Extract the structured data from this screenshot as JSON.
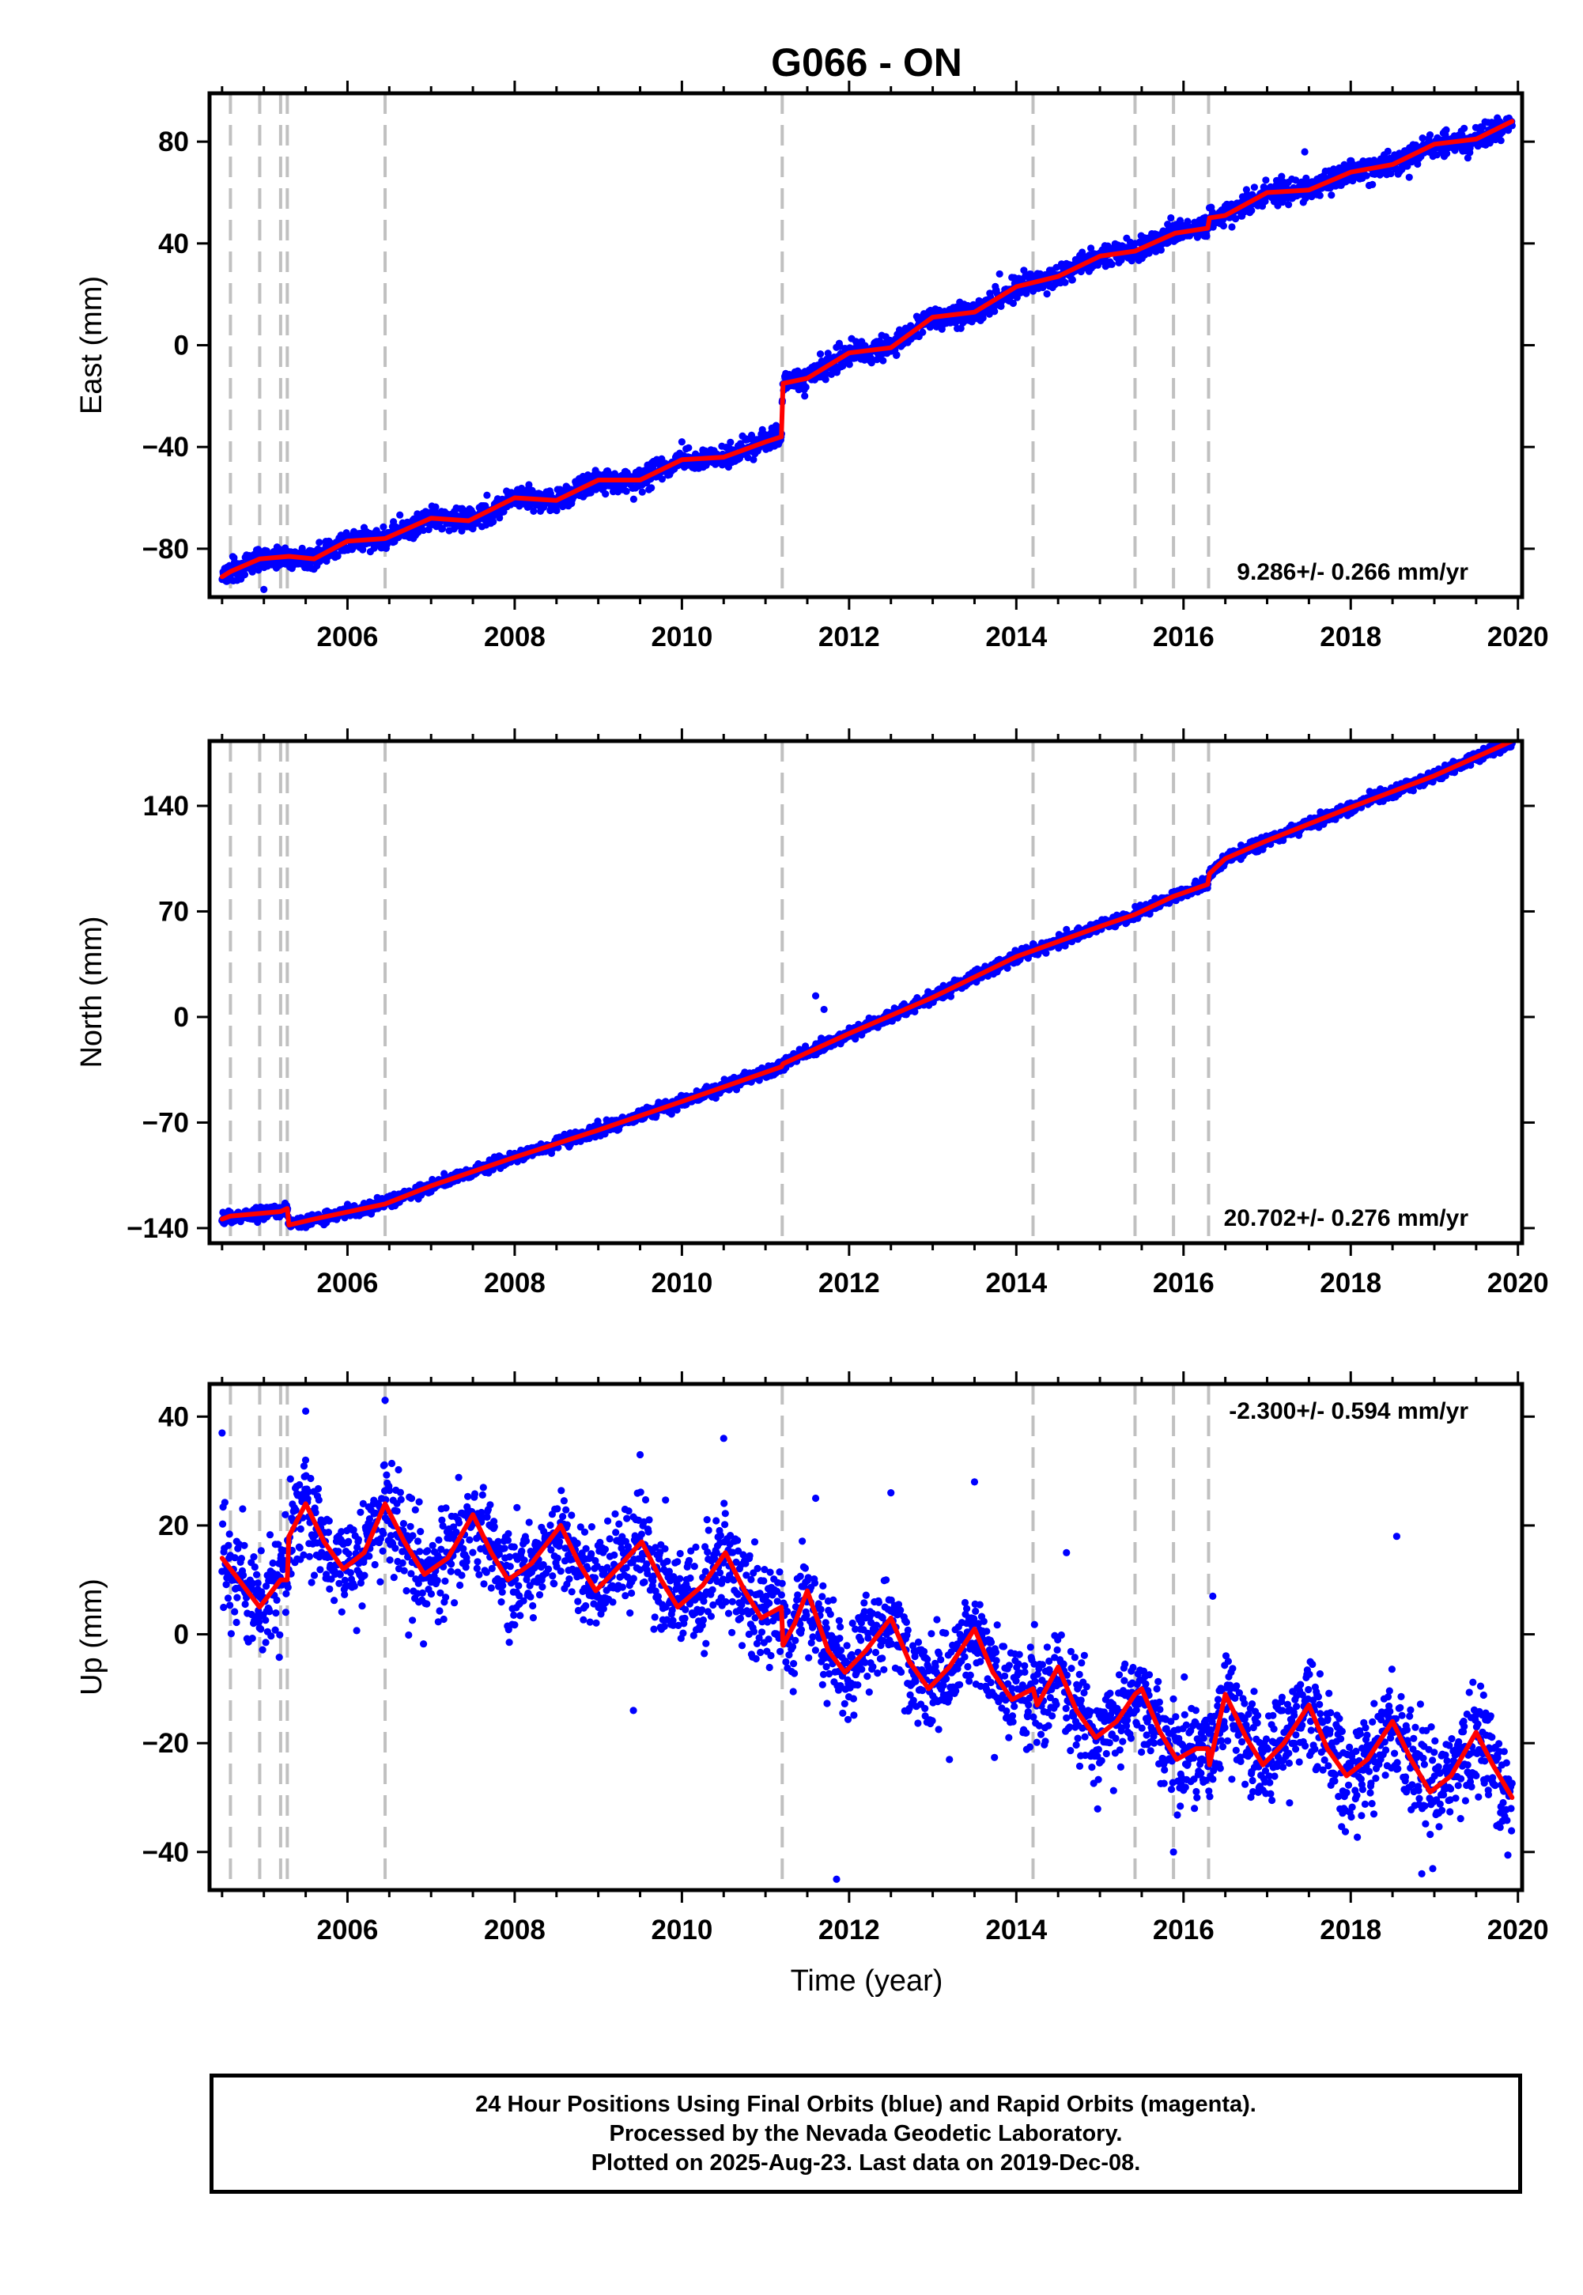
{
  "chart_data": {
    "title": "G066 - ON",
    "type": "scatter",
    "xlabel": "Time (year)",
    "xlim": [
      2004.35,
      2020.05
    ],
    "xticks": [
      2006,
      2008,
      2010,
      2012,
      2014,
      2016,
      2018,
      2020
    ],
    "event_lines": [
      2004.6,
      2004.95,
      2005.2,
      2005.28,
      2006.45,
      2011.2,
      2014.2,
      2015.42,
      2015.88,
      2016.3
    ],
    "colors": {
      "points": "#0000ff",
      "model": "#ff0000",
      "event_lines": "#c0c0c0",
      "frame": "#000000"
    },
    "panels": [
      {
        "ylabel": "East (mm)",
        "ylim": [
          -99,
          99
        ],
        "yticks": [
          -80,
          -40,
          0,
          40,
          80
        ],
        "velocity": "9.286+/- 0.266 mm/yr",
        "velocity_position": "bottom-right",
        "noise": 2.2,
        "model_knots": [
          [
            2004.5,
            -91
          ],
          [
            2004.6,
            -89
          ],
          [
            2004.95,
            -84
          ],
          [
            2005.3,
            -83
          ],
          [
            2005.6,
            -84
          ],
          [
            2006.0,
            -77
          ],
          [
            2006.45,
            -76
          ],
          [
            2007.0,
            -68
          ],
          [
            2007.45,
            -69
          ],
          [
            2008.0,
            -60
          ],
          [
            2008.5,
            -61
          ],
          [
            2009.0,
            -53
          ],
          [
            2009.5,
            -53
          ],
          [
            2010.0,
            -45
          ],
          [
            2010.5,
            -44
          ],
          [
            2011.0,
            -38
          ],
          [
            2011.19,
            -36
          ],
          [
            2011.21,
            -15
          ],
          [
            2011.5,
            -13
          ],
          [
            2012.0,
            -3
          ],
          [
            2012.5,
            -1
          ],
          [
            2013.0,
            11
          ],
          [
            2013.5,
            13
          ],
          [
            2014.0,
            23
          ],
          [
            2014.5,
            27
          ],
          [
            2015.0,
            35
          ],
          [
            2015.42,
            37
          ],
          [
            2015.9,
            44
          ],
          [
            2016.29,
            46
          ],
          [
            2016.31,
            50
          ],
          [
            2016.5,
            51
          ],
          [
            2017.0,
            60
          ],
          [
            2017.5,
            61
          ],
          [
            2018.0,
            68
          ],
          [
            2018.5,
            71
          ],
          [
            2019.0,
            79
          ],
          [
            2019.5,
            81
          ],
          [
            2019.93,
            88
          ]
        ],
        "outliers": [
          [
            2017.45,
            76
          ],
          [
            2010.0,
            -38
          ],
          [
            2005.0,
            -96
          ],
          [
            2013.8,
            28
          ],
          [
            2018.7,
            66
          ]
        ]
      },
      {
        "ylabel": "North (mm)",
        "ylim": [
          -150,
          183
        ],
        "yticks": [
          -140,
          -70,
          0,
          70,
          140
        ],
        "velocity": "20.702+/- 0.276 mm/yr",
        "velocity_position": "bottom-right",
        "noise": 2.0,
        "model_knots": [
          [
            2004.5,
            -134
          ],
          [
            2004.6,
            -132
          ],
          [
            2005.2,
            -129
          ],
          [
            2005.28,
            -127
          ],
          [
            2005.3,
            -138
          ],
          [
            2005.6,
            -134
          ],
          [
            2006.45,
            -124
          ],
          [
            2007.0,
            -112
          ],
          [
            2008.0,
            -93
          ],
          [
            2009.0,
            -75
          ],
          [
            2010.0,
            -56
          ],
          [
            2011.19,
            -33
          ],
          [
            2011.21,
            -31
          ],
          [
            2012.0,
            -11
          ],
          [
            2013.0,
            13
          ],
          [
            2014.0,
            40
          ],
          [
            2014.2,
            44
          ],
          [
            2015.0,
            60
          ],
          [
            2015.42,
            68
          ],
          [
            2015.88,
            80
          ],
          [
            2016.29,
            88
          ],
          [
            2016.31,
            95
          ],
          [
            2016.5,
            105
          ],
          [
            2017.0,
            117
          ],
          [
            2018.0,
            139
          ],
          [
            2019.0,
            160
          ],
          [
            2019.93,
            183
          ]
        ],
        "outliers": [
          [
            2011.6,
            14
          ],
          [
            2011.7,
            5
          ],
          [
            2014.6,
            58
          ]
        ]
      },
      {
        "ylabel": "Up (mm)",
        "ylim": [
          -47,
          46
        ],
        "yticks": [
          -40,
          -20,
          0,
          20,
          40
        ],
        "velocity": "-2.300+/- 0.594 mm/yr",
        "velocity_position": "top-right",
        "noise": 4.6,
        "model_knots": [
          [
            2004.5,
            14
          ],
          [
            2004.7,
            10
          ],
          [
            2004.95,
            5
          ],
          [
            2005.1,
            8
          ],
          [
            2005.2,
            10
          ],
          [
            2005.28,
            10
          ],
          [
            2005.3,
            18
          ],
          [
            2005.5,
            24
          ],
          [
            2005.72,
            17
          ],
          [
            2005.95,
            12
          ],
          [
            2006.2,
            15
          ],
          [
            2006.45,
            24
          ],
          [
            2006.68,
            17
          ],
          [
            2006.92,
            11
          ],
          [
            2007.2,
            14
          ],
          [
            2007.5,
            22
          ],
          [
            2007.72,
            15
          ],
          [
            2007.92,
            10
          ],
          [
            2008.2,
            13
          ],
          [
            2008.55,
            20
          ],
          [
            2008.77,
            13
          ],
          [
            2008.97,
            8
          ],
          [
            2009.22,
            12
          ],
          [
            2009.52,
            17
          ],
          [
            2009.75,
            10
          ],
          [
            2009.95,
            5
          ],
          [
            2010.25,
            9
          ],
          [
            2010.52,
            15
          ],
          [
            2010.75,
            8
          ],
          [
            2010.95,
            3
          ],
          [
            2011.19,
            5
          ],
          [
            2011.21,
            -2
          ],
          [
            2011.35,
            2
          ],
          [
            2011.5,
            8
          ],
          [
            2011.75,
            -3
          ],
          [
            2011.95,
            -7
          ],
          [
            2012.2,
            -3
          ],
          [
            2012.5,
            3
          ],
          [
            2012.72,
            -5
          ],
          [
            2012.95,
            -10
          ],
          [
            2013.2,
            -6
          ],
          [
            2013.5,
            1
          ],
          [
            2013.72,
            -7
          ],
          [
            2013.95,
            -12
          ],
          [
            2014.2,
            -10
          ],
          [
            2014.25,
            -13
          ],
          [
            2014.5,
            -6
          ],
          [
            2014.72,
            -14
          ],
          [
            2014.95,
            -19
          ],
          [
            2015.2,
            -16
          ],
          [
            2015.42,
            -11
          ],
          [
            2015.5,
            -10
          ],
          [
            2015.72,
            -18
          ],
          [
            2015.92,
            -23
          ],
          [
            2016.15,
            -21
          ],
          [
            2016.29,
            -21
          ],
          [
            2016.31,
            -24
          ],
          [
            2016.5,
            -11
          ],
          [
            2016.75,
            -19
          ],
          [
            2016.95,
            -24
          ],
          [
            2017.2,
            -20
          ],
          [
            2017.5,
            -13
          ],
          [
            2017.72,
            -21
          ],
          [
            2017.95,
            -26
          ],
          [
            2018.2,
            -23
          ],
          [
            2018.5,
            -16
          ],
          [
            2018.72,
            -23
          ],
          [
            2018.95,
            -29
          ],
          [
            2019.2,
            -26
          ],
          [
            2019.5,
            -18
          ],
          [
            2019.7,
            -24
          ],
          [
            2019.93,
            -30
          ]
        ],
        "outliers": [
          [
            2005.5,
            41
          ],
          [
            2006.45,
            43
          ],
          [
            2004.5,
            37
          ],
          [
            2009.5,
            33
          ],
          [
            2010.5,
            36
          ],
          [
            2011.6,
            25
          ],
          [
            2012.5,
            26
          ],
          [
            2013.5,
            28
          ],
          [
            2014.6,
            15
          ],
          [
            2018.55,
            18
          ],
          [
            2016.35,
            7
          ],
          [
            2011.85,
            -45
          ],
          [
            2018.85,
            -44
          ],
          [
            2015.88,
            -40
          ],
          [
            2009.42,
            -14
          ],
          [
            2013.2,
            -23
          ]
        ]
      }
    ]
  },
  "footer": {
    "line1": "24 Hour Positions Using Final Orbits (blue) and Rapid Orbits (magenta).",
    "line2": "Processed by the Nevada Geodetic Laboratory.",
    "line3": "Plotted on 2025-Aug-23. Last data on 2019-Dec-08."
  }
}
